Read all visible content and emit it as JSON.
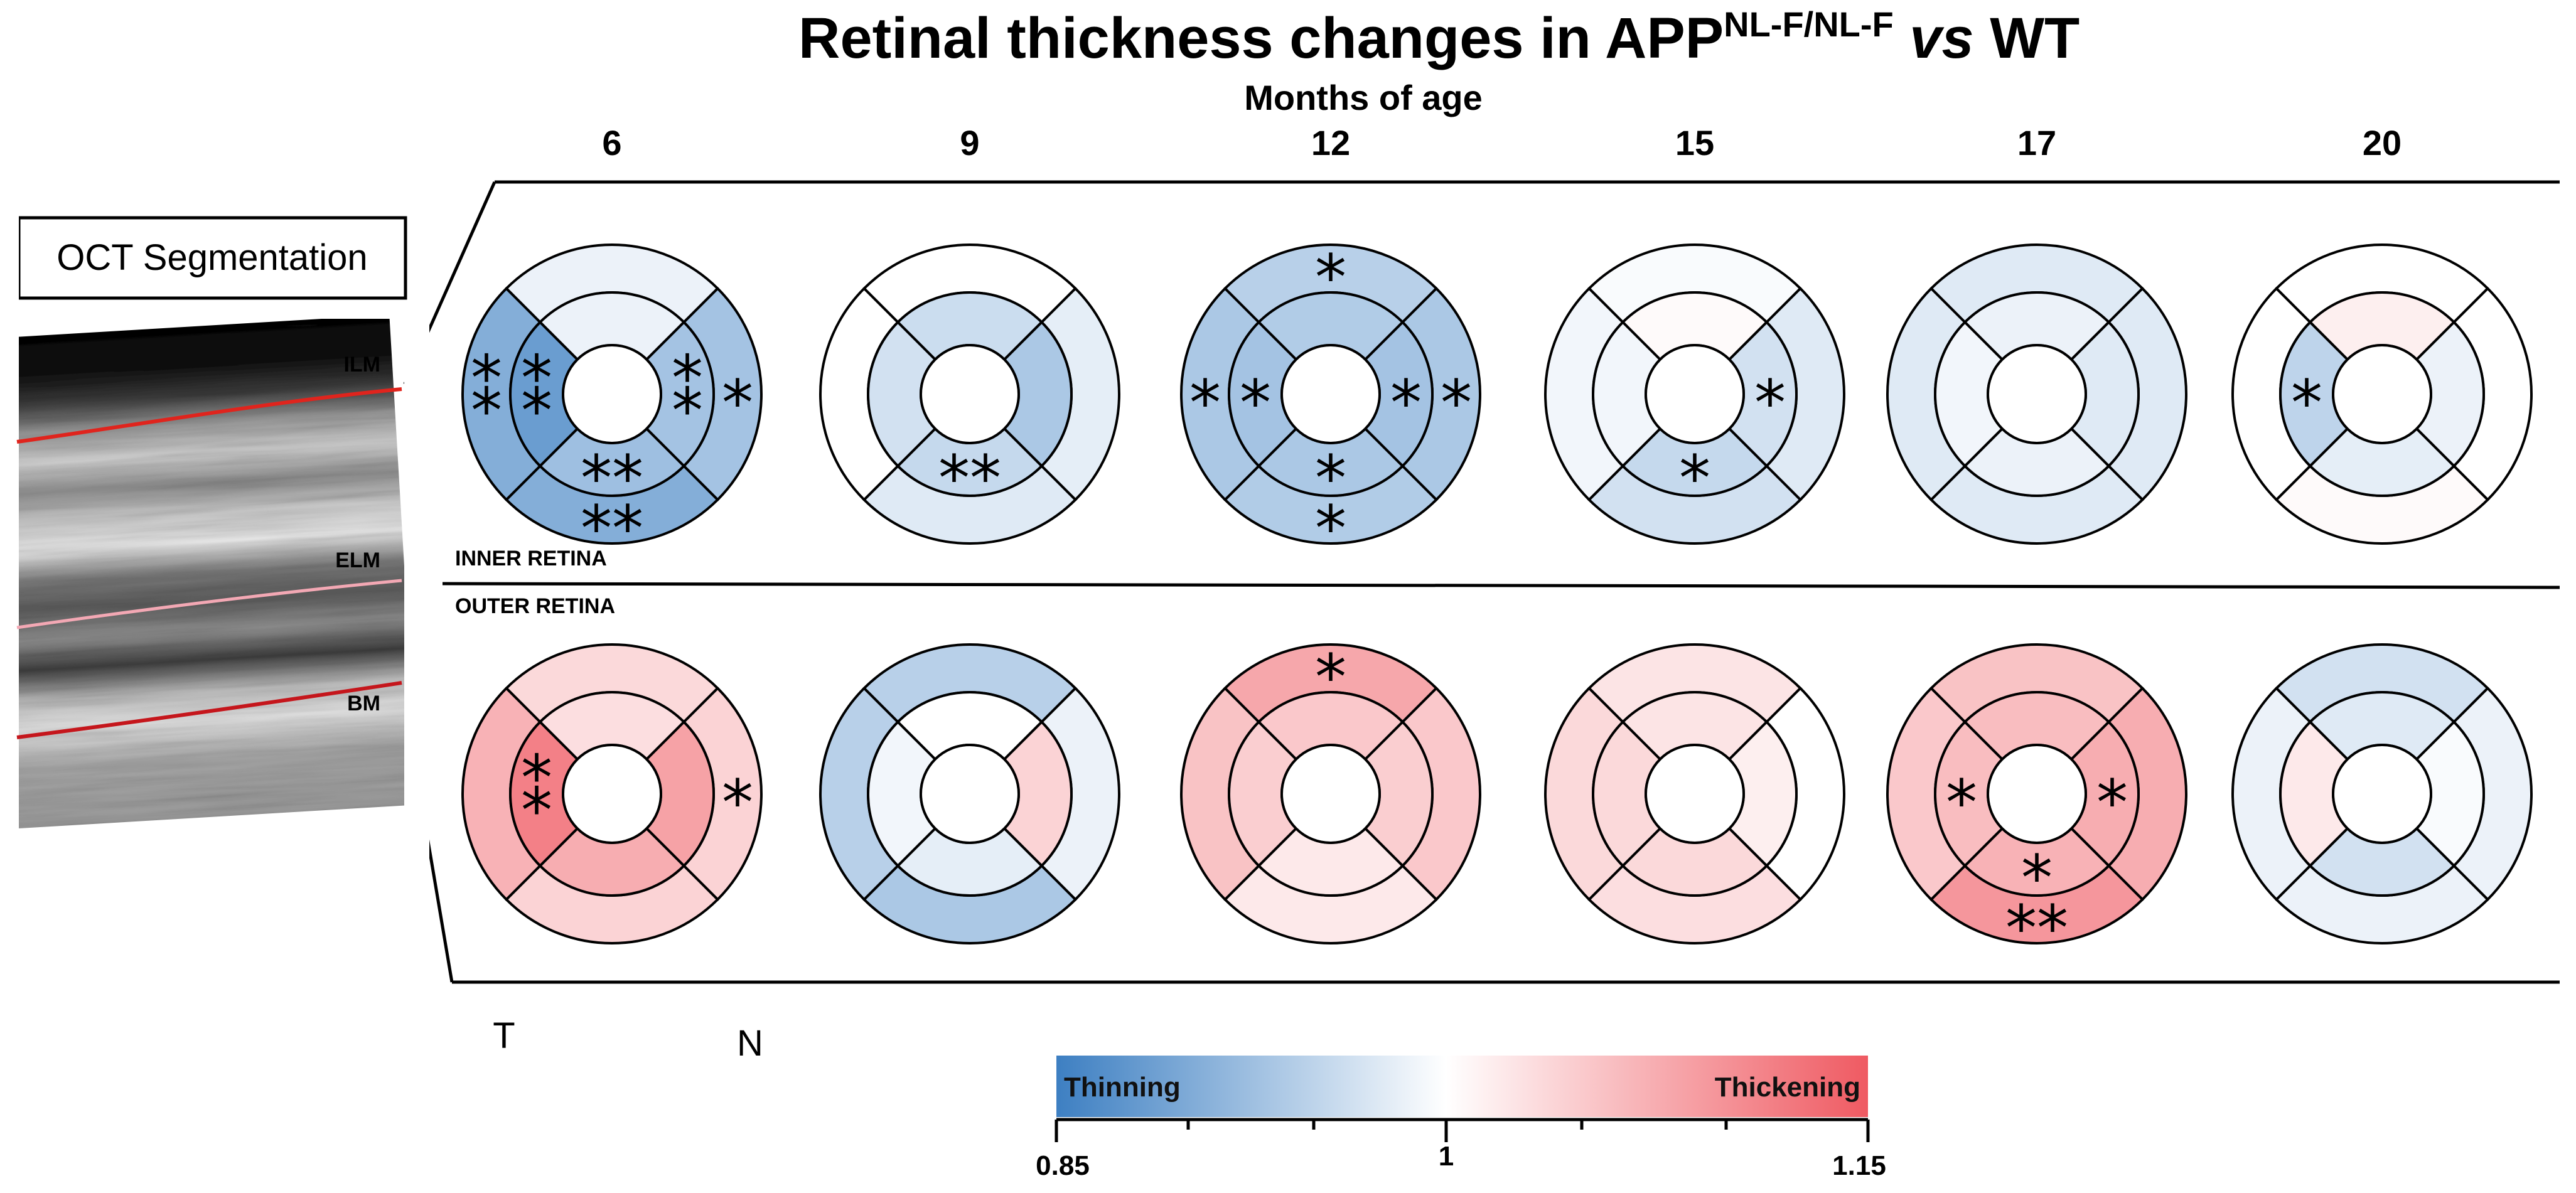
{
  "title": {
    "main": "Retinal thickness changes in APP",
    "superscript": "NL-F/NL-F",
    "vs": "vs",
    "wt": "WT"
  },
  "subtitle": "Months of age",
  "ages": [
    "6",
    "9",
    "12",
    "15",
    "17",
    "20"
  ],
  "region_labels": {
    "inner": "INNER RETINA",
    "outer": "OUTER RETINA"
  },
  "oct": {
    "title": "OCT Segmentation",
    "layers": [
      {
        "label": "ILM",
        "color": "#e0241d"
      },
      {
        "label": "ELM",
        "color": "#f3a8b4"
      },
      {
        "label": "BM",
        "color": "#c5161c"
      }
    ]
  },
  "orientation": {
    "temporal": "T",
    "nasal": "N"
  },
  "legend": {
    "thinning_label": "Thinning",
    "thickening_label": "Thickening",
    "min": 0.85,
    "mid": 1,
    "max": 1.15,
    "tick_min_label": "0.85",
    "tick_mid_label": "1",
    "tick_max_label": "1.15",
    "color_min": "#3d7fc2",
    "color_mid": "#ffffff",
    "color_max": "#ef5a62"
  },
  "sector_order": [
    "outer_sup",
    "outer_nas",
    "outer_inf",
    "outer_temp",
    "inner_sup",
    "inner_nas",
    "inner_inf",
    "inner_temp"
  ],
  "maps": {
    "inner": [
      {
        "age": "6",
        "sectors": {
          "outer_sup": {
            "value": 0.985,
            "sig": ""
          },
          "outer_nas": {
            "value": 0.93,
            "sig": "*"
          },
          "outer_inf": {
            "value": 0.905,
            "sig": "**"
          },
          "outer_temp": {
            "value": 0.905,
            "sig": "**"
          },
          "inner_sup": {
            "value": 0.985,
            "sig": ""
          },
          "inner_nas": {
            "value": 0.93,
            "sig": "**"
          },
          "inner_inf": {
            "value": 0.925,
            "sig": "**"
          },
          "inner_temp": {
            "value": 0.885,
            "sig": "**"
          }
        }
      },
      {
        "age": "9",
        "sectors": {
          "outer_sup": {
            "value": 1.0,
            "sig": ""
          },
          "outer_nas": {
            "value": 0.98,
            "sig": ""
          },
          "outer_inf": {
            "value": 0.975,
            "sig": ""
          },
          "outer_temp": {
            "value": 1.0,
            "sig": ""
          },
          "inner_sup": {
            "value": 0.96,
            "sig": ""
          },
          "inner_nas": {
            "value": 0.935,
            "sig": ""
          },
          "inner_inf": {
            "value": 0.955,
            "sig": "**"
          },
          "inner_temp": {
            "value": 0.965,
            "sig": ""
          }
        }
      },
      {
        "age": "12",
        "sectors": {
          "outer_sup": {
            "value": 0.945,
            "sig": "*"
          },
          "outer_nas": {
            "value": 0.935,
            "sig": "*"
          },
          "outer_inf": {
            "value": 0.94,
            "sig": "*"
          },
          "outer_temp": {
            "value": 0.935,
            "sig": "*"
          },
          "inner_sup": {
            "value": 0.94,
            "sig": ""
          },
          "inner_nas": {
            "value": 0.93,
            "sig": "*"
          },
          "inner_inf": {
            "value": 0.935,
            "sig": "*"
          },
          "inner_temp": {
            "value": 0.93,
            "sig": "*"
          }
        }
      },
      {
        "age": "15",
        "sectors": {
          "outer_sup": {
            "value": 0.995,
            "sig": ""
          },
          "outer_nas": {
            "value": 0.975,
            "sig": ""
          },
          "outer_inf": {
            "value": 0.965,
            "sig": ""
          },
          "outer_temp": {
            "value": 0.99,
            "sig": ""
          },
          "inner_sup": {
            "value": 1.005,
            "sig": ""
          },
          "inner_nas": {
            "value": 0.965,
            "sig": "*"
          },
          "inner_inf": {
            "value": 0.955,
            "sig": "*"
          },
          "inner_temp": {
            "value": 0.99,
            "sig": ""
          }
        }
      },
      {
        "age": "17",
        "sectors": {
          "outer_sup": {
            "value": 0.975,
            "sig": ""
          },
          "outer_nas": {
            "value": 0.975,
            "sig": ""
          },
          "outer_inf": {
            "value": 0.975,
            "sig": ""
          },
          "outer_temp": {
            "value": 0.975,
            "sig": ""
          },
          "inner_sup": {
            "value": 0.985,
            "sig": ""
          },
          "inner_nas": {
            "value": 0.975,
            "sig": ""
          },
          "inner_inf": {
            "value": 0.985,
            "sig": ""
          },
          "inner_temp": {
            "value": 0.99,
            "sig": ""
          }
        }
      },
      {
        "age": "20",
        "sectors": {
          "outer_sup": {
            "value": 1.0,
            "sig": ""
          },
          "outer_nas": {
            "value": 1.0,
            "sig": ""
          },
          "outer_inf": {
            "value": 1.005,
            "sig": ""
          },
          "outer_temp": {
            "value": 1.0,
            "sig": ""
          },
          "inner_sup": {
            "value": 1.015,
            "sig": ""
          },
          "inner_nas": {
            "value": 0.985,
            "sig": ""
          },
          "inner_inf": {
            "value": 0.98,
            "sig": ""
          },
          "inner_temp": {
            "value": 0.95,
            "sig": "*"
          }
        }
      }
    ],
    "outer": [
      {
        "age": "6",
        "sectors": {
          "outer_sup": {
            "value": 1.035,
            "sig": ""
          },
          "outer_nas": {
            "value": 1.04,
            "sig": "*"
          },
          "outer_inf": {
            "value": 1.04,
            "sig": ""
          },
          "outer_temp": {
            "value": 1.07,
            "sig": ""
          },
          "inner_sup": {
            "value": 1.03,
            "sig": ""
          },
          "inner_nas": {
            "value": 1.085,
            "sig": ""
          },
          "inner_inf": {
            "value": 1.075,
            "sig": ""
          },
          "inner_temp": {
            "value": 1.115,
            "sig": "**"
          }
        }
      },
      {
        "age": "9",
        "sectors": {
          "outer_sup": {
            "value": 0.945,
            "sig": ""
          },
          "outer_nas": {
            "value": 0.985,
            "sig": ""
          },
          "outer_inf": {
            "value": 0.935,
            "sig": ""
          },
          "outer_temp": {
            "value": 0.945,
            "sig": ""
          },
          "inner_sup": {
            "value": 1.0,
            "sig": ""
          },
          "inner_nas": {
            "value": 1.04,
            "sig": ""
          },
          "inner_inf": {
            "value": 0.98,
            "sig": ""
          },
          "inner_temp": {
            "value": 0.99,
            "sig": ""
          }
        }
      },
      {
        "age": "12",
        "sectors": {
          "outer_sup": {
            "value": 1.08,
            "sig": "*"
          },
          "outer_nas": {
            "value": 1.05,
            "sig": ""
          },
          "outer_inf": {
            "value": 1.02,
            "sig": ""
          },
          "outer_temp": {
            "value": 1.055,
            "sig": ""
          },
          "inner_sup": {
            "value": 1.05,
            "sig": ""
          },
          "inner_nas": {
            "value": 1.045,
            "sig": ""
          },
          "inner_inf": {
            "value": 1.02,
            "sig": ""
          },
          "inner_temp": {
            "value": 1.045,
            "sig": ""
          }
        }
      },
      {
        "age": "15",
        "sectors": {
          "outer_sup": {
            "value": 1.025,
            "sig": ""
          },
          "outer_nas": {
            "value": 1.0,
            "sig": ""
          },
          "outer_inf": {
            "value": 1.03,
            "sig": ""
          },
          "outer_temp": {
            "value": 1.035,
            "sig": ""
          },
          "inner_sup": {
            "value": 1.025,
            "sig": ""
          },
          "inner_nas": {
            "value": 1.015,
            "sig": ""
          },
          "inner_inf": {
            "value": 1.035,
            "sig": ""
          },
          "inner_temp": {
            "value": 1.035,
            "sig": ""
          }
        }
      },
      {
        "age": "17",
        "sectors": {
          "outer_sup": {
            "value": 1.055,
            "sig": ""
          },
          "outer_nas": {
            "value": 1.075,
            "sig": ""
          },
          "outer_inf": {
            "value": 1.095,
            "sig": "**"
          },
          "outer_temp": {
            "value": 1.05,
            "sig": ""
          },
          "inner_sup": {
            "value": 1.06,
            "sig": ""
          },
          "inner_nas": {
            "value": 1.075,
            "sig": "*"
          },
          "inner_inf": {
            "value": 1.07,
            "sig": "*"
          },
          "inner_temp": {
            "value": 1.06,
            "sig": "*"
          }
        }
      },
      {
        "age": "20",
        "sectors": {
          "outer_sup": {
            "value": 0.965,
            "sig": ""
          },
          "outer_nas": {
            "value": 0.985,
            "sig": ""
          },
          "outer_inf": {
            "value": 0.985,
            "sig": ""
          },
          "outer_temp": {
            "value": 0.985,
            "sig": ""
          },
          "inner_sup": {
            "value": 0.975,
            "sig": ""
          },
          "inner_nas": {
            "value": 0.995,
            "sig": ""
          },
          "inner_inf": {
            "value": 0.965,
            "sig": ""
          },
          "inner_temp": {
            "value": 1.02,
            "sig": ""
          }
        }
      }
    ]
  }
}
